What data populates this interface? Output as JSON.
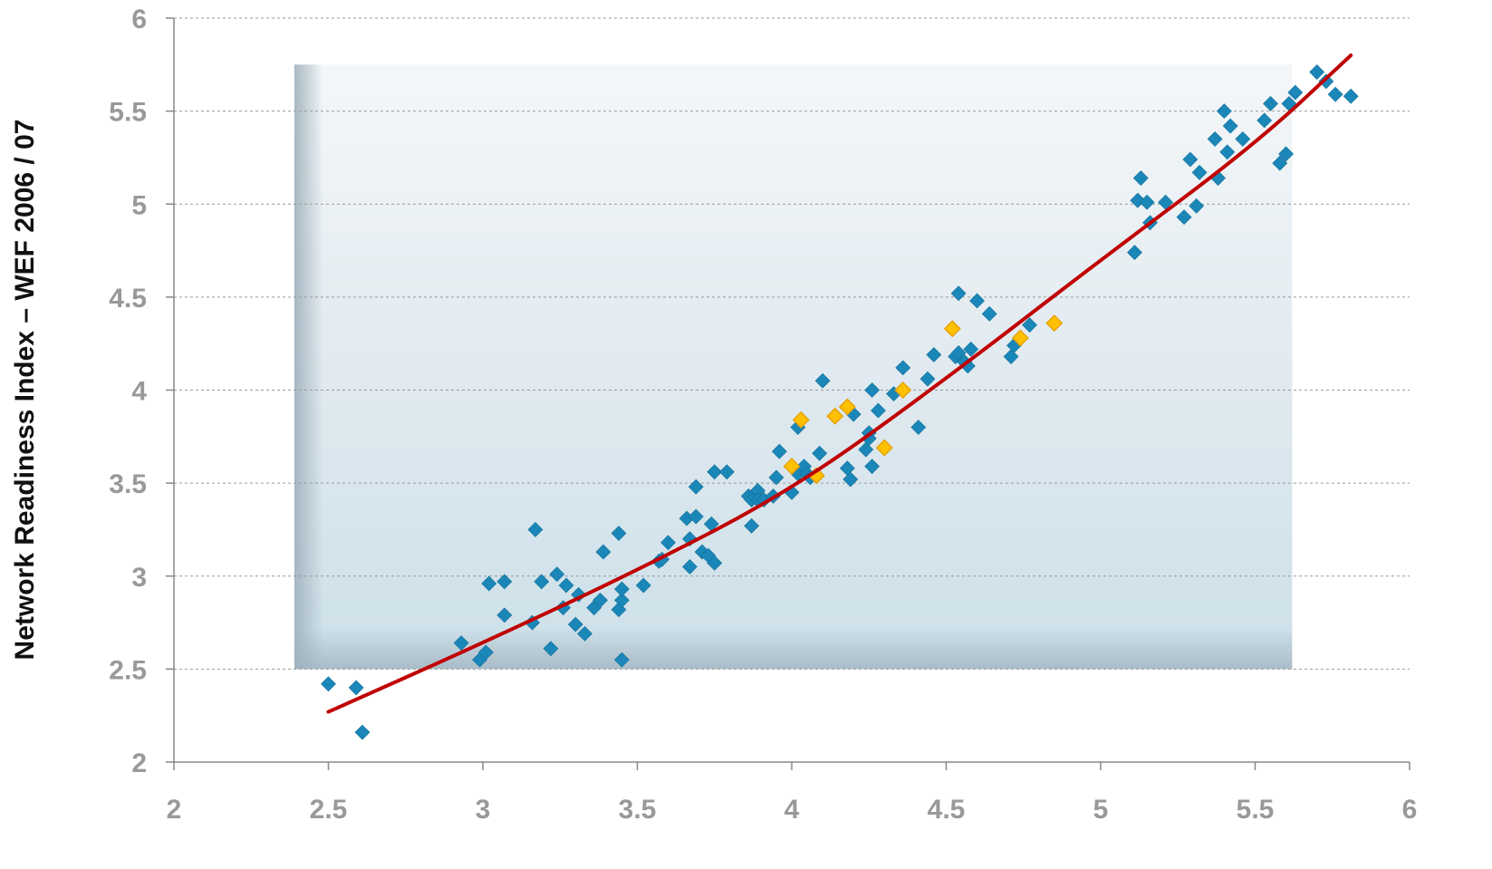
{
  "chart_data": {
    "type": "scatter",
    "title": "",
    "xlabel": "",
    "ylabel": "Network Readiness Index – WEF 2006 / 07",
    "xlim": [
      2,
      6
    ],
    "ylim": [
      2,
      6
    ],
    "x_ticks": [
      "2",
      "2.5",
      "3",
      "3.5",
      "4",
      "4.5",
      "5",
      "5.5",
      "6"
    ],
    "y_ticks": [
      "2",
      "2.5",
      "3",
      "3.5",
      "4",
      "4.5",
      "5",
      "5.5",
      "6"
    ],
    "grid": "horizontal dashed",
    "legend": "none",
    "colors": {
      "primary": "#1a87b8",
      "highlight": "#ffc000",
      "highlight_edge": "#e8a000",
      "trend": "#c00000",
      "shade": "#d4e3ec",
      "axis": "#888888"
    },
    "highlight_region": {
      "x": [
        2.39,
        5.62
      ],
      "y": [
        2.5,
        5.75
      ]
    },
    "series": [
      {
        "points": [
          [
            2.5,
            2.42
          ],
          [
            2.59,
            2.4
          ],
          [
            2.61,
            2.16
          ],
          [
            2.93,
            2.64
          ],
          [
            2.99,
            2.55
          ],
          [
            3.01,
            2.59
          ],
          [
            3.02,
            2.96
          ],
          [
            3.07,
            2.97
          ],
          [
            3.07,
            2.79
          ],
          [
            3.16,
            2.75
          ],
          [
            3.17,
            3.25
          ],
          [
            3.19,
            2.97
          ],
          [
            3.22,
            2.61
          ],
          [
            3.24,
            3.01
          ],
          [
            3.26,
            2.83
          ],
          [
            3.27,
            2.95
          ],
          [
            3.3,
            2.74
          ],
          [
            3.31,
            2.9
          ],
          [
            3.33,
            2.69
          ],
          [
            3.36,
            2.83
          ],
          [
            3.38,
            2.87
          ],
          [
            3.39,
            3.13
          ],
          [
            3.44,
            3.23
          ],
          [
            3.44,
            2.82
          ],
          [
            3.45,
            2.87
          ],
          [
            3.45,
            2.93
          ],
          [
            3.45,
            2.55
          ],
          [
            3.52,
            2.95
          ],
          [
            3.57,
            3.08
          ],
          [
            3.58,
            3.09
          ],
          [
            3.6,
            3.18
          ],
          [
            3.66,
            3.31
          ],
          [
            3.67,
            3.05
          ],
          [
            3.67,
            3.2
          ],
          [
            3.69,
            3.48
          ],
          [
            3.69,
            3.32
          ],
          [
            3.71,
            3.13
          ],
          [
            3.73,
            3.11
          ],
          [
            3.74,
            3.28
          ],
          [
            3.75,
            3.07
          ],
          [
            3.75,
            3.56
          ],
          [
            3.79,
            3.56
          ],
          [
            3.86,
            3.43
          ],
          [
            3.87,
            3.27
          ],
          [
            3.87,
            3.41
          ],
          [
            3.89,
            3.46
          ],
          [
            3.89,
            3.41
          ],
          [
            3.91,
            3.41
          ],
          [
            3.94,
            3.43
          ],
          [
            3.95,
            3.53
          ],
          [
            3.96,
            3.67
          ],
          [
            4.0,
            3.45
          ],
          [
            4.02,
            3.55
          ],
          [
            4.02,
            3.8
          ],
          [
            4.04,
            3.59
          ],
          [
            4.05,
            3.55
          ],
          [
            4.06,
            3.53
          ],
          [
            4.09,
            3.66
          ],
          [
            4.1,
            4.05
          ],
          [
            4.18,
            3.58
          ],
          [
            4.19,
            3.52
          ],
          [
            4.2,
            3.87
          ],
          [
            4.24,
            3.68
          ],
          [
            4.25,
            3.74
          ],
          [
            4.25,
            3.77
          ],
          [
            4.26,
            3.59
          ],
          [
            4.26,
            4.0
          ],
          [
            4.28,
            3.89
          ],
          [
            4.33,
            3.98
          ],
          [
            4.36,
            4.12
          ],
          [
            4.41,
            3.8
          ],
          [
            4.44,
            4.06
          ],
          [
            4.46,
            4.19
          ],
          [
            4.53,
            4.18
          ],
          [
            4.54,
            4.2
          ],
          [
            4.54,
            4.52
          ],
          [
            4.56,
            4.15
          ],
          [
            4.57,
            4.13
          ],
          [
            4.58,
            4.22
          ],
          [
            4.6,
            4.48
          ],
          [
            4.64,
            4.41
          ],
          [
            4.71,
            4.18
          ],
          [
            4.72,
            4.24
          ],
          [
            4.77,
            4.35
          ],
          [
            5.11,
            4.74
          ],
          [
            5.12,
            5.02
          ],
          [
            5.13,
            5.14
          ],
          [
            5.15,
            5.01
          ],
          [
            5.16,
            4.9
          ],
          [
            5.21,
            5.01
          ],
          [
            5.27,
            4.93
          ],
          [
            5.29,
            5.24
          ],
          [
            5.31,
            4.99
          ],
          [
            5.32,
            5.17
          ],
          [
            5.37,
            5.35
          ],
          [
            5.38,
            5.14
          ],
          [
            5.4,
            5.5
          ],
          [
            5.41,
            5.28
          ],
          [
            5.42,
            5.42
          ],
          [
            5.46,
            5.35
          ],
          [
            5.53,
            5.45
          ],
          [
            5.55,
            5.54
          ],
          [
            5.58,
            5.22
          ],
          [
            5.6,
            5.27
          ],
          [
            5.61,
            5.54
          ],
          [
            5.63,
            5.6
          ],
          [
            5.7,
            5.71
          ],
          [
            5.73,
            5.66
          ],
          [
            5.76,
            5.59
          ],
          [
            5.81,
            5.58
          ]
        ]
      },
      {
        "points": [
          [
            4.0,
            3.59
          ],
          [
            4.03,
            3.84
          ],
          [
            4.08,
            3.54
          ],
          [
            4.14,
            3.86
          ],
          [
            4.18,
            3.91
          ],
          [
            4.3,
            3.69
          ],
          [
            4.36,
            4.0
          ],
          [
            4.52,
            4.33
          ],
          [
            4.74,
            4.28
          ],
          [
            4.85,
            4.36
          ]
        ]
      },
      {
        "type": "line",
        "points": [
          [
            2.5,
            2.27
          ],
          [
            3.0,
            2.64
          ],
          [
            3.5,
            3.03
          ],
          [
            4.0,
            3.46
          ],
          [
            4.5,
            4.06
          ],
          [
            5.0,
            4.7
          ],
          [
            5.5,
            5.32
          ],
          [
            5.81,
            5.8
          ]
        ]
      }
    ]
  }
}
